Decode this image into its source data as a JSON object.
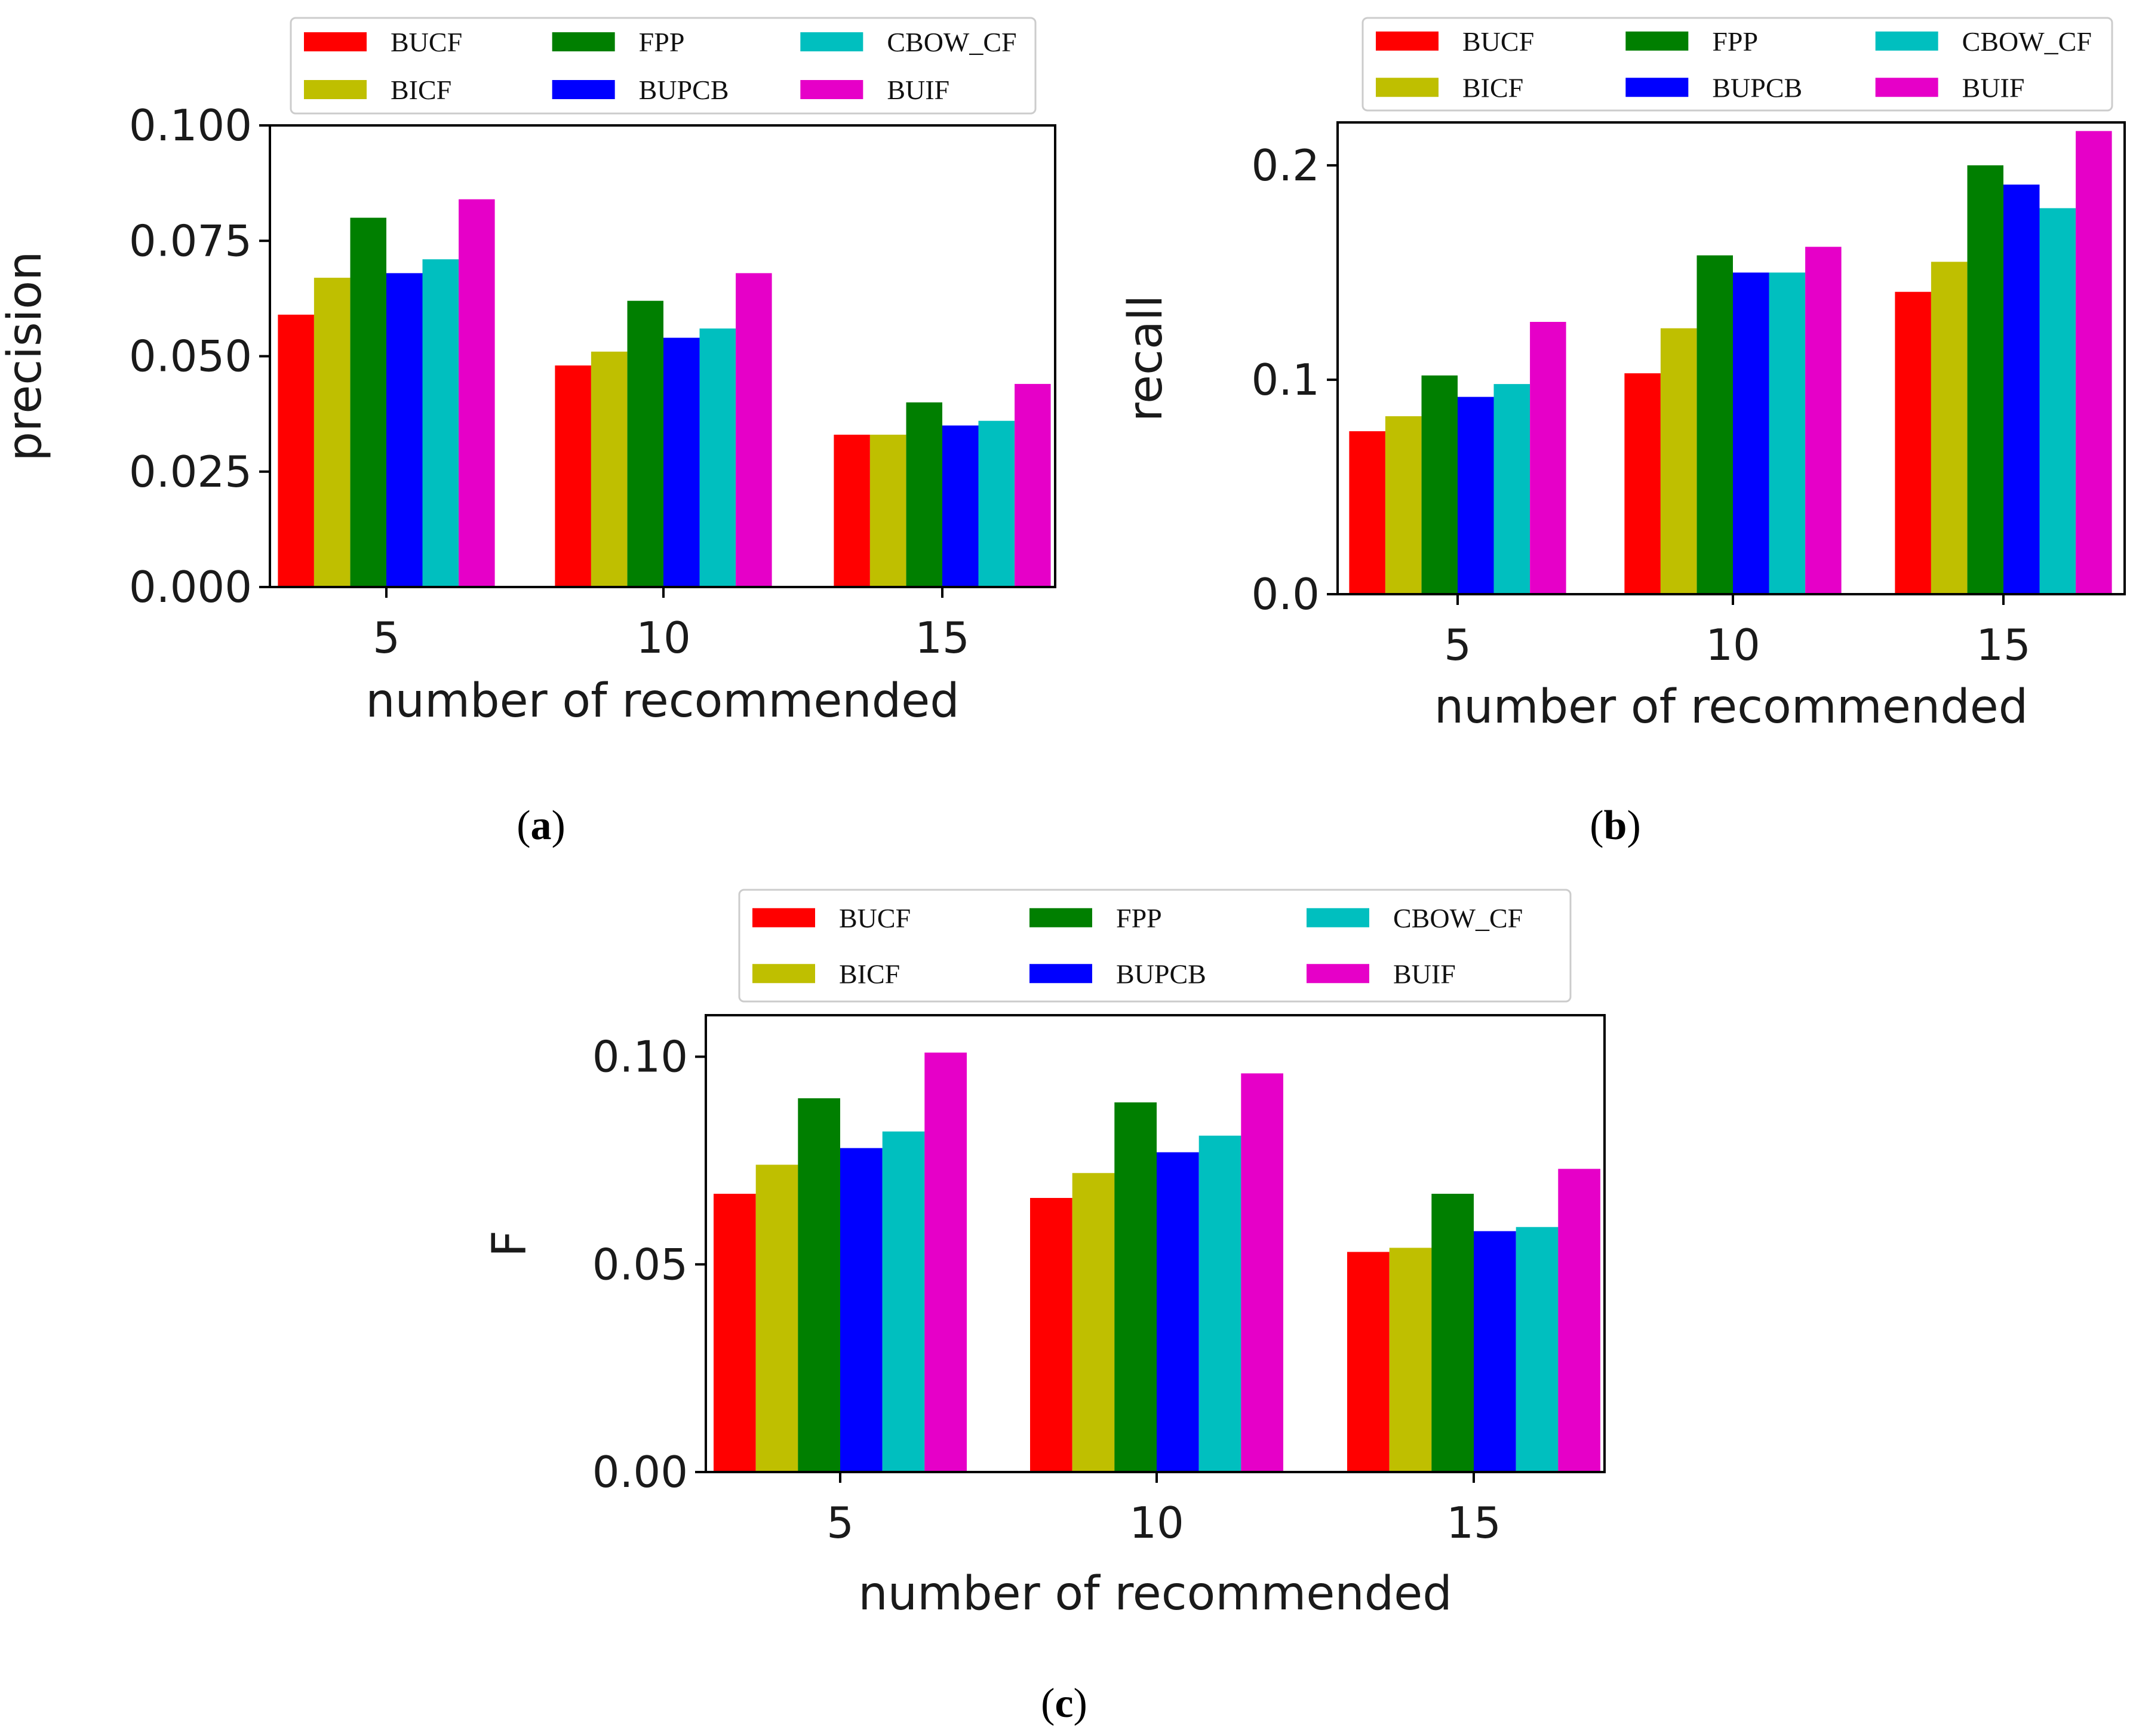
{
  "colors": {
    "BUCF": "#ff0000",
    "BICF": "#bfbf00",
    "FPP": "#007f00",
    "BUPCB": "#0000ff",
    "CBOW_CF": "#00bfbf",
    "BUIF": "#e600c8"
  },
  "chart_data": [
    {
      "type": "bar",
      "panel": "a",
      "caption": {
        "open": "(",
        "letter": "a",
        "close": ")"
      },
      "categories": [
        "5",
        "10",
        "15"
      ],
      "xlabel": "number of recommended",
      "ylabel": "precision",
      "ylim": [
        0,
        0.1
      ],
      "yticks": [
        0.0,
        0.025,
        0.05,
        0.075,
        0.1
      ],
      "yticklabels": [
        "0.000",
        "0.025",
        "0.050",
        "0.075",
        "0.100"
      ],
      "legend": {
        "position": "top",
        "entries": [
          "BUCF",
          "FPP",
          "CBOW_CF",
          "BICF",
          "BUPCB",
          "BUIF"
        ]
      },
      "series": [
        {
          "name": "BUCF",
          "values": [
            0.059,
            0.048,
            0.033
          ]
        },
        {
          "name": "BICF",
          "values": [
            0.067,
            0.051,
            0.033
          ]
        },
        {
          "name": "FPP",
          "values": [
            0.08,
            0.062,
            0.04
          ]
        },
        {
          "name": "BUPCB",
          "values": [
            0.068,
            0.054,
            0.035
          ]
        },
        {
          "name": "CBOW_CF",
          "values": [
            0.071,
            0.056,
            0.036
          ]
        },
        {
          "name": "BUIF",
          "values": [
            0.084,
            0.068,
            0.044
          ]
        }
      ]
    },
    {
      "type": "bar",
      "panel": "b",
      "caption": {
        "open": "(",
        "letter": "b",
        "close": ")"
      },
      "categories": [
        "5",
        "10",
        "15"
      ],
      "xlabel": "number of recommended",
      "ylabel": "recall",
      "ylim": [
        0,
        0.22
      ],
      "yticks": [
        0.0,
        0.1,
        0.2
      ],
      "yticklabels": [
        "0.0",
        "0.1",
        "0.2"
      ],
      "legend": {
        "position": "top",
        "entries": [
          "BUCF",
          "FPP",
          "CBOW_CF",
          "BICF",
          "BUPCB",
          "BUIF"
        ]
      },
      "series": [
        {
          "name": "BUCF",
          "values": [
            0.076,
            0.103,
            0.141
          ]
        },
        {
          "name": "BICF",
          "values": [
            0.083,
            0.124,
            0.155
          ]
        },
        {
          "name": "FPP",
          "values": [
            0.102,
            0.158,
            0.2
          ]
        },
        {
          "name": "BUPCB",
          "values": [
            0.092,
            0.15,
            0.191
          ]
        },
        {
          "name": "CBOW_CF",
          "values": [
            0.098,
            0.15,
            0.18
          ]
        },
        {
          "name": "BUIF",
          "values": [
            0.127,
            0.162,
            0.216
          ]
        }
      ]
    },
    {
      "type": "bar",
      "panel": "c",
      "caption": {
        "open": "(",
        "letter": "c",
        "close": ")"
      },
      "categories": [
        "5",
        "10",
        "15"
      ],
      "xlabel": "number of recommended",
      "ylabel": "F",
      "ylim": [
        0,
        0.11
      ],
      "yticks": [
        0.0,
        0.05,
        0.1
      ],
      "yticklabels": [
        "0.00",
        "0.05",
        "0.10"
      ],
      "legend": {
        "position": "top",
        "entries": [
          "BUCF",
          "FPP",
          "CBOW_CF",
          "BICF",
          "BUPCB",
          "BUIF"
        ]
      },
      "series": [
        {
          "name": "BUCF",
          "values": [
            0.067,
            0.066,
            0.053
          ]
        },
        {
          "name": "BICF",
          "values": [
            0.074,
            0.072,
            0.054
          ]
        },
        {
          "name": "FPP",
          "values": [
            0.09,
            0.089,
            0.067
          ]
        },
        {
          "name": "BUPCB",
          "values": [
            0.078,
            0.077,
            0.058
          ]
        },
        {
          "name": "CBOW_CF",
          "values": [
            0.082,
            0.081,
            0.059
          ]
        },
        {
          "name": "BUIF",
          "values": [
            0.101,
            0.096,
            0.073
          ]
        }
      ]
    }
  ]
}
